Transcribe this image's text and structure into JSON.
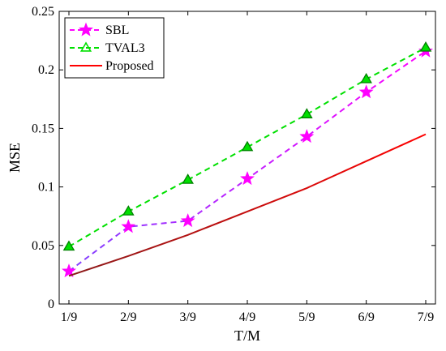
{
  "chart_data": {
    "type": "line",
    "title": "",
    "xlabel": "T/M",
    "ylabel": "MSE",
    "categories": [
      "1/9",
      "2/9",
      "3/9",
      "4/9",
      "5/9",
      "6/9",
      "7/9"
    ],
    "ylim": [
      0,
      0.25
    ],
    "yticks": [
      0,
      0.05,
      0.1,
      0.15,
      0.2,
      0.25
    ],
    "ytick_labels": [
      "0",
      "0.05",
      "0.1",
      "0.15",
      "0.2",
      "0.25"
    ],
    "grid": false,
    "legend_position": "top-left",
    "series": [
      {
        "name": "SBL",
        "values": [
          0.028,
          0.066,
          0.071,
          0.107,
          0.143,
          0.181,
          0.216
        ],
        "color": "#ff00ff",
        "gradient_start": "#8040ff",
        "marker": "star",
        "style": "dashed"
      },
      {
        "name": "TVAL3",
        "values": [
          0.049,
          0.079,
          0.106,
          0.134,
          0.162,
          0.192,
          0.219
        ],
        "color": "#00e000",
        "marker": "triangle",
        "style": "dashed"
      },
      {
        "name": "Proposed",
        "values": [
          0.024,
          0.041,
          0.059,
          0.079,
          0.099,
          0.122,
          0.145
        ],
        "color": "#ff0000",
        "gradient_start": "#8b1a1a",
        "marker": "none",
        "style": "solid"
      }
    ]
  }
}
